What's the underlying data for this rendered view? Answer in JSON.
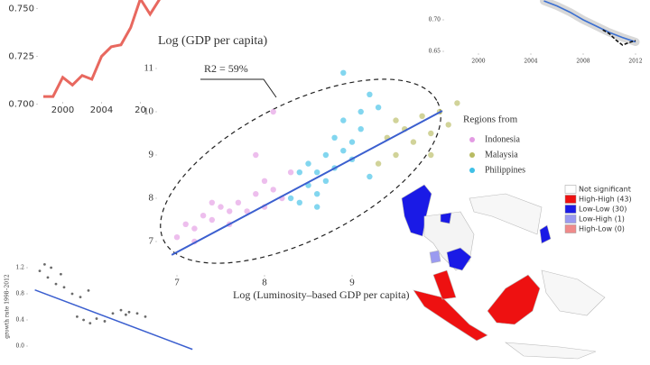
{
  "chart_data": [
    {
      "type": "line",
      "xticks": [
        2000,
        2004,
        {
          "value": 2008,
          "label": "20"
        }
      ],
      "yticks": [
        {
          "value": 0.7,
          "label": "0.700"
        },
        0.725,
        {
          "value": 0.75,
          "label": "0.750"
        }
      ],
      "xlim": [
        1996,
        2012
      ],
      "ylim": [
        0.695,
        0.755
      ],
      "series": [
        {
          "color": "#e8685f",
          "x": [
            1998,
            1999,
            2000,
            2001,
            2002,
            2003,
            2004,
            2005,
            2006,
            2007,
            2008,
            2009,
            2010,
            2011
          ],
          "values": [
            0.704,
            0.704,
            0.714,
            0.71,
            0.715,
            0.713,
            0.725,
            0.73,
            0.731,
            0.74,
            0.755,
            0.747,
            0.755,
            0.757
          ]
        }
      ]
    },
    {
      "type": "line",
      "xticks": [
        2000,
        2004,
        2008,
        2012
      ],
      "yticks": [
        0.65,
        {
          "value": 0.7,
          "label": "0.70"
        }
      ],
      "xlim": [
        1998,
        2013
      ],
      "ylim": [
        0.64,
        0.74
      ],
      "series": [
        {
          "color": "#3b6fd1",
          "band": true,
          "x": [
            2005,
            2006,
            2007,
            2008,
            2009,
            2010,
            2011,
            2012
          ],
          "values": [
            0.73,
            0.722,
            0.712,
            0.7,
            0.69,
            0.68,
            0.672,
            0.665
          ]
        },
        {
          "color": "#111111",
          "dashed": true,
          "x": [
            2009.5,
            2010,
            2010.5,
            2011,
            2011.5,
            2012
          ],
          "values": [
            0.684,
            0.678,
            0.668,
            0.66,
            0.664,
            0.667
          ]
        }
      ]
    },
    {
      "type": "scatter",
      "title": "Log (GDP per capita)",
      "x_label": "Log (Luminosity–based GDP per capita)",
      "annotation": "R2 = 59%",
      "legend_title": "Regions from",
      "xticks": [
        7,
        8,
        9
      ],
      "yticks": [
        7,
        8,
        9,
        10,
        11
      ],
      "xlim": [
        6.9,
        10.5
      ],
      "ylim": [
        6.6,
        11.2
      ],
      "series": [
        {
          "name": "Indonesia",
          "color": "#e39be3",
          "x": [
            7.0,
            7.1,
            7.2,
            7.3,
            7.4,
            7.5,
            7.6,
            7.7,
            7.8,
            7.9,
            8.0,
            8.1,
            8.2,
            8.3,
            8.1,
            7.9,
            7.4,
            7.2,
            7.6,
            8.0
          ],
          "values": [
            7.1,
            7.4,
            7.3,
            7.6,
            7.5,
            7.8,
            7.4,
            7.9,
            7.7,
            8.1,
            7.8,
            8.2,
            8.0,
            8.6,
            10.0,
            9.0,
            7.9,
            7.0,
            7.7,
            8.4
          ]
        },
        {
          "name": "Malaysia",
          "color": "#b8bb62",
          "x": [
            9.3,
            9.4,
            9.5,
            9.6,
            9.7,
            9.8,
            9.9,
            10.0,
            10.1,
            10.2,
            9.5,
            9.9
          ],
          "values": [
            8.8,
            9.4,
            9.0,
            9.6,
            9.3,
            9.9,
            9.5,
            10.0,
            9.7,
            10.2,
            9.8,
            9.0
          ]
        },
        {
          "name": "Philippines",
          "color": "#3fc0e6",
          "x": [
            8.3,
            8.4,
            8.5,
            8.5,
            8.6,
            8.6,
            8.7,
            8.7,
            8.8,
            8.8,
            8.9,
            8.9,
            9.0,
            9.0,
            9.1,
            9.1,
            9.2,
            9.3,
            8.9,
            9.2,
            8.4,
            8.6
          ],
          "values": [
            8.0,
            7.9,
            8.3,
            8.8,
            8.1,
            8.6,
            9.0,
            8.4,
            9.4,
            8.7,
            9.1,
            9.8,
            9.3,
            8.9,
            10.0,
            9.6,
            10.4,
            10.1,
            10.9,
            8.5,
            8.6,
            7.8
          ]
        }
      ],
      "trend": {
        "color": "#3b5fcf",
        "x": [
          6.94,
          10.03
        ],
        "values": [
          6.69,
          10.02
        ]
      }
    },
    {
      "type": "scatter",
      "y_label": "growth rate 1998–2012",
      "yticks": [
        {
          "value": 0,
          "label": "0.0"
        },
        0.4,
        0.8,
        1.2
      ],
      "xlim": [
        0,
        10
      ],
      "ylim": [
        -0.1,
        1.3
      ],
      "series": [
        {
          "color": "#444444",
          "x": [
            0.5,
            0.8,
            1,
            1.2,
            1.5,
            1.8,
            2,
            2.5,
            3,
            3.5,
            2.8,
            3.2,
            3.6,
            4.0,
            4.5,
            5,
            5.5,
            6,
            6.5,
            7,
            5.8
          ],
          "values": [
            1.15,
            1.25,
            1.05,
            1.2,
            0.95,
            1.1,
            0.9,
            0.8,
            0.75,
            0.85,
            0.45,
            0.4,
            0.35,
            0.42,
            0.38,
            0.5,
            0.55,
            0.52,
            0.5,
            0.45,
            0.48
          ]
        }
      ],
      "trend": {
        "color": "#3b5fcf",
        "x": [
          0.2,
          9.9
        ],
        "values": [
          0.86,
          -0.05
        ]
      }
    }
  ],
  "map": {
    "legend": [
      {
        "label": "Not significant",
        "color": "#ffffff"
      },
      {
        "label": "High-High (43)",
        "color": "#ee1111"
      },
      {
        "label": "Low-Low (30)",
        "color": "#1a1ae6"
      },
      {
        "label": "Low-High (1)",
        "color": "#9a9af0"
      },
      {
        "label": "High-Low (0)",
        "color": "#f08a8a"
      }
    ]
  }
}
